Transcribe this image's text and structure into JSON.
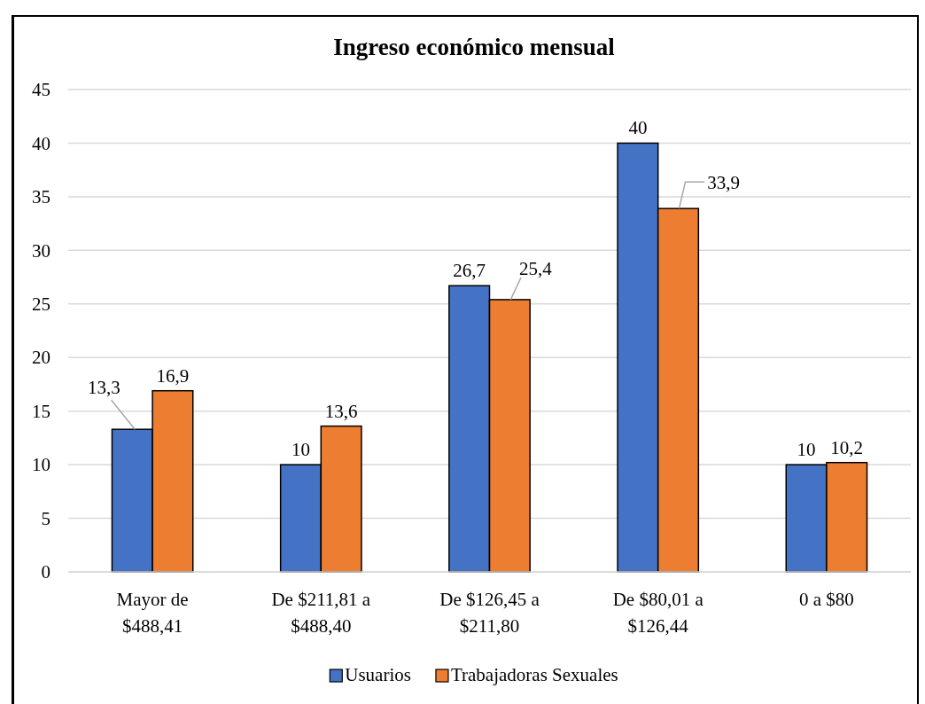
{
  "chart_data": {
    "type": "bar",
    "title": "Ingreso económico mensual",
    "categories": [
      "Mayor de $488,41",
      "De $211,81 a $488,40",
      "De $126,45 a $211,80",
      "De $80,01 a $126,44",
      "0 a $80"
    ],
    "series": [
      {
        "name": "Usuarios",
        "color": "#4472c4",
        "values": [
          13.3,
          10,
          26.7,
          40,
          10
        ],
        "value_labels": [
          "13,3",
          "10",
          "26,7",
          "40",
          "10"
        ]
      },
      {
        "name": "Trabajadoras Sexuales",
        "color": "#ed7d31",
        "values": [
          16.9,
          13.6,
          25.4,
          33.9,
          10.2
        ],
        "value_labels": [
          "16,9",
          "13,6",
          "25,4",
          "33,9",
          "10,2"
        ]
      }
    ],
    "ylim": [
      0,
      45
    ],
    "yticks": [
      0,
      5,
      10,
      15,
      20,
      25,
      30,
      35,
      40,
      45
    ],
    "grid": "y",
    "legend": "bottom"
  }
}
